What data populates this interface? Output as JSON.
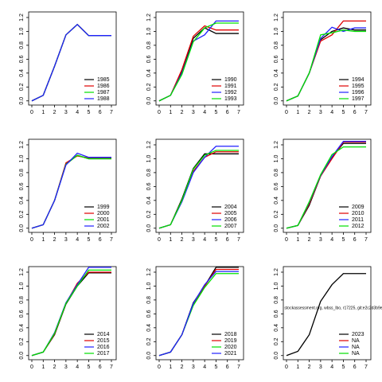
{
  "chart_data": [
    {
      "type": "line",
      "x": [
        0,
        1,
        2,
        3,
        4,
        5,
        6,
        7
      ],
      "xlim": [
        -0.28,
        7.42
      ],
      "xticks": [
        0,
        1,
        2,
        3,
        4,
        5,
        6,
        7
      ],
      "ylim": [
        -0.06,
        1.28
      ],
      "yticks": [
        {
          "value": 0,
          "label": "0.0"
        },
        0.2,
        0.4,
        0.6,
        0.8,
        {
          "value": 1,
          "label": "1.0"
        },
        1.2
      ],
      "legend": "bottomright",
      "series": [
        {
          "name": "1985",
          "color": "#000000",
          "values": [
            0,
            0.08,
            0.5,
            0.95,
            1.1,
            0.94,
            0.94,
            0.94
          ]
        },
        {
          "name": "1986",
          "color": "#df0000",
          "values": [
            0,
            0.08,
            0.5,
            0.95,
            1.1,
            0.94,
            0.94,
            0.94
          ]
        },
        {
          "name": "1987",
          "color": "#00e000",
          "values": [
            0,
            0.08,
            0.5,
            0.95,
            1.1,
            0.94,
            0.94,
            0.94
          ]
        },
        {
          "name": "1988",
          "color": "#2020ff",
          "values": [
            0,
            0.08,
            0.5,
            0.95,
            1.1,
            0.94,
            0.94,
            0.94
          ]
        }
      ]
    },
    {
      "type": "line",
      "x": [
        0,
        1,
        2,
        3,
        4,
        5,
        6,
        7
      ],
      "xlim": [
        -0.28,
        7.42
      ],
      "xticks": [
        0,
        1,
        2,
        3,
        4,
        5,
        6,
        7
      ],
      "ylim": [
        -0.06,
        1.28
      ],
      "yticks": [
        {
          "value": 0,
          "label": "0.0"
        },
        0.2,
        0.4,
        0.6,
        0.8,
        {
          "value": 1,
          "label": "1.0"
        },
        1.2
      ],
      "legend": "bottomright",
      "series": [
        {
          "name": "1990",
          "color": "#000000",
          "values": [
            0,
            0.08,
            0.42,
            0.9,
            1.05,
            0.97,
            0.97,
            0.97
          ]
        },
        {
          "name": "1991",
          "color": "#df0000",
          "values": [
            0,
            0.08,
            0.45,
            0.93,
            1.08,
            1.02,
            1.02,
            1.02
          ]
        },
        {
          "name": "1992",
          "color": "#2020ff",
          "values": [
            0,
            0.08,
            0.4,
            0.86,
            0.95,
            1.15,
            1.15,
            1.15
          ]
        },
        {
          "name": "1993",
          "color": "#00e000",
          "values": [
            0,
            0.08,
            0.38,
            0.85,
            1.05,
            1.12,
            1.12,
            1.12
          ]
        }
      ]
    },
    {
      "type": "line",
      "x": [
        0,
        1,
        2,
        3,
        4,
        5,
        6,
        7
      ],
      "xlim": [
        -0.28,
        7.42
      ],
      "xticks": [
        0,
        1,
        2,
        3,
        4,
        5,
        6,
        7
      ],
      "ylim": [
        -0.06,
        1.28
      ],
      "yticks": [
        {
          "value": 0,
          "label": "0.0"
        },
        0.2,
        0.4,
        0.6,
        0.8,
        {
          "value": 1,
          "label": "1.0"
        },
        1.2
      ],
      "legend": "bottomright",
      "series": [
        {
          "name": "1994",
          "color": "#000000",
          "values": [
            0,
            0.07,
            0.4,
            0.88,
            1.0,
            1.05,
            1.02,
            1.02
          ]
        },
        {
          "name": "1995",
          "color": "#df0000",
          "values": [
            0,
            0.07,
            0.4,
            0.86,
            0.95,
            1.15,
            1.15,
            1.15
          ]
        },
        {
          "name": "1996",
          "color": "#2020ff",
          "values": [
            0,
            0.07,
            0.4,
            0.9,
            1.06,
            1.0,
            1.05,
            1.05
          ]
        },
        {
          "name": "1997",
          "color": "#00e000",
          "values": [
            0,
            0.07,
            0.4,
            0.95,
            0.98,
            1.02,
            1.0,
            1.0
          ]
        }
      ]
    },
    {
      "type": "line",
      "x": [
        0,
        1,
        2,
        3,
        4,
        5,
        6,
        7
      ],
      "xlim": [
        -0.28,
        7.42
      ],
      "xticks": [
        0,
        1,
        2,
        3,
        4,
        5,
        6,
        7
      ],
      "ylim": [
        -0.06,
        1.28
      ],
      "yticks": [
        {
          "value": 0,
          "label": "0.0"
        },
        0.2,
        0.4,
        0.6,
        0.8,
        {
          "value": 1,
          "label": "1.0"
        },
        1.2
      ],
      "legend": "bottomright",
      "series": [
        {
          "name": "1999",
          "color": "#000000",
          "values": [
            0,
            0.05,
            0.4,
            0.92,
            1.05,
            1.0,
            1.0,
            1.0
          ]
        },
        {
          "name": "2000",
          "color": "#df0000",
          "values": [
            0,
            0.05,
            0.4,
            0.94,
            1.04,
            1.01,
            1.01,
            1.01
          ]
        },
        {
          "name": "2001",
          "color": "#00e000",
          "values": [
            0,
            0.05,
            0.4,
            0.92,
            1.05,
            1.0,
            1.0,
            1.0
          ]
        },
        {
          "name": "2002",
          "color": "#2020ff",
          "values": [
            0,
            0.05,
            0.4,
            0.91,
            1.08,
            1.02,
            1.02,
            1.02
          ]
        }
      ]
    },
    {
      "type": "line",
      "x": [
        0,
        1,
        2,
        3,
        4,
        5,
        6,
        7
      ],
      "xlim": [
        -0.28,
        7.42
      ],
      "xticks": [
        0,
        1,
        2,
        3,
        4,
        5,
        6,
        7
      ],
      "ylim": [
        -0.06,
        1.28
      ],
      "yticks": [
        {
          "value": 0,
          "label": "0.0"
        },
        0.2,
        0.4,
        0.6,
        0.8,
        {
          "value": 1,
          "label": "1.0"
        },
        1.2
      ],
      "legend": "bottomright",
      "series": [
        {
          "name": "2004",
          "color": "#000000",
          "values": [
            0,
            0.05,
            0.42,
            0.86,
            1.07,
            1.07,
            1.07,
            1.07
          ]
        },
        {
          "name": "2005",
          "color": "#df0000",
          "values": [
            0,
            0.05,
            0.4,
            0.82,
            1.02,
            1.1,
            1.1,
            1.1
          ]
        },
        {
          "name": "2006",
          "color": "#2020ff",
          "values": [
            0,
            0.05,
            0.38,
            0.8,
            1.02,
            1.18,
            1.18,
            1.18
          ]
        },
        {
          "name": "2007",
          "color": "#00e000",
          "values": [
            0,
            0.05,
            0.4,
            0.85,
            1.05,
            1.12,
            1.12,
            1.12
          ]
        }
      ]
    },
    {
      "type": "line",
      "x": [
        0,
        1,
        2,
        3,
        4,
        5,
        6,
        7
      ],
      "xlim": [
        -0.28,
        7.42
      ],
      "xticks": [
        0,
        1,
        2,
        3,
        4,
        5,
        6,
        7
      ],
      "ylim": [
        -0.06,
        1.28
      ],
      "yticks": [
        {
          "value": 0,
          "label": "0.0"
        },
        0.2,
        0.4,
        0.6,
        0.8,
        {
          "value": 1,
          "label": "1.0"
        },
        1.2
      ],
      "legend": "bottomright",
      "series": [
        {
          "name": "2009",
          "color": "#000000",
          "values": [
            0,
            0.04,
            0.33,
            0.75,
            1.02,
            1.22,
            1.22,
            1.22
          ]
        },
        {
          "name": "2010",
          "color": "#df0000",
          "values": [
            0,
            0.04,
            0.35,
            0.75,
            1.0,
            1.24,
            1.24,
            1.24
          ]
        },
        {
          "name": "2011",
          "color": "#2020ff",
          "values": [
            0,
            0.04,
            0.37,
            0.76,
            1.03,
            1.25,
            1.25,
            1.25
          ]
        },
        {
          "name": "2012",
          "color": "#00e000",
          "values": [
            0,
            0.04,
            0.38,
            0.77,
            1.06,
            1.17,
            1.17,
            1.17
          ]
        }
      ]
    },
    {
      "type": "line",
      "x": [
        0,
        1,
        2,
        3,
        4,
        5,
        6,
        7
      ],
      "xlim": [
        -0.28,
        7.42
      ],
      "xticks": [
        0,
        1,
        2,
        3,
        4,
        5,
        6,
        7
      ],
      "ylim": [
        -0.06,
        1.28
      ],
      "yticks": [
        {
          "value": 0,
          "label": "0.0"
        },
        0.2,
        0.4,
        0.6,
        0.8,
        {
          "value": 1,
          "label": "1.0"
        },
        1.2
      ],
      "legend": "bottomright",
      "series": [
        {
          "name": "2014",
          "color": "#000000",
          "values": [
            0,
            0.05,
            0.3,
            0.74,
            1.0,
            1.19,
            1.19,
            1.19
          ]
        },
        {
          "name": "2015",
          "color": "#df0000",
          "values": [
            0,
            0.05,
            0.31,
            0.75,
            1.04,
            1.2,
            1.2,
            1.2
          ]
        },
        {
          "name": "2016",
          "color": "#2020ff",
          "values": [
            0,
            0.05,
            0.33,
            0.76,
            1.02,
            1.27,
            1.27,
            1.27
          ]
        },
        {
          "name": "2017",
          "color": "#00e000",
          "values": [
            0,
            0.05,
            0.32,
            0.75,
            1.0,
            1.23,
            1.23,
            1.23
          ]
        }
      ]
    },
    {
      "type": "line",
      "x": [
        0,
        1,
        2,
        3,
        4,
        5,
        6,
        7
      ],
      "xlim": [
        -0.28,
        7.42
      ],
      "xticks": [
        0,
        1,
        2,
        3,
        4,
        5,
        6,
        7
      ],
      "ylim": [
        -0.06,
        1.28
      ],
      "yticks": [
        {
          "value": 0,
          "label": "0.0"
        },
        0.2,
        0.4,
        0.6,
        0.8,
        {
          "value": 1,
          "label": "1.0"
        },
        1.2
      ],
      "legend": "bottomright",
      "series": [
        {
          "name": "2018",
          "color": "#000000",
          "values": [
            0,
            0.05,
            0.3,
            0.76,
            1.0,
            1.27,
            1.27,
            1.27
          ]
        },
        {
          "name": "2019",
          "color": "#df0000",
          "values": [
            0,
            0.05,
            0.3,
            0.74,
            1.0,
            1.24,
            1.24,
            1.24
          ]
        },
        {
          "name": "2020",
          "color": "#00e000",
          "values": [
            0,
            0.05,
            0.3,
            0.72,
            0.98,
            1.18,
            1.18,
            1.18
          ]
        },
        {
          "name": "2021",
          "color": "#2020ff",
          "values": [
            0,
            0.05,
            0.3,
            0.75,
            1.02,
            1.21,
            1.21,
            1.21
          ]
        }
      ]
    },
    {
      "type": "line",
      "x": [
        0,
        1,
        2,
        3,
        4,
        5,
        6,
        7
      ],
      "xlim": [
        -0.28,
        7.42
      ],
      "xticks": [
        0,
        1,
        2,
        3,
        4,
        5,
        6,
        7
      ],
      "ylim": [
        -0.06,
        1.28
      ],
      "yticks": [
        {
          "value": 0,
          "label": "0.0"
        },
        0.2,
        0.4,
        0.6,
        0.8,
        {
          "value": 1,
          "label": "1.0"
        },
        1.2
      ],
      "legend": "bottomright",
      "annotation": "stockassessment.org, wbss_lbo, r17225, git:e2c2d3b9e",
      "series": [
        {
          "name": "2023",
          "color": "#000000",
          "values": [
            0,
            0.06,
            0.3,
            0.78,
            1.02,
            1.18,
            1.18,
            1.18
          ]
        },
        {
          "name": "NA",
          "color": "#df0000",
          "values": [
            null,
            null,
            null,
            null,
            null,
            null,
            null,
            null
          ]
        },
        {
          "name": "NA",
          "color": "#2020ff",
          "values": [
            null,
            null,
            null,
            null,
            null,
            null,
            null,
            null
          ]
        },
        {
          "name": "NA",
          "color": "#00e000",
          "values": [
            null,
            null,
            null,
            null,
            null,
            null,
            null,
            null
          ]
        }
      ]
    }
  ]
}
